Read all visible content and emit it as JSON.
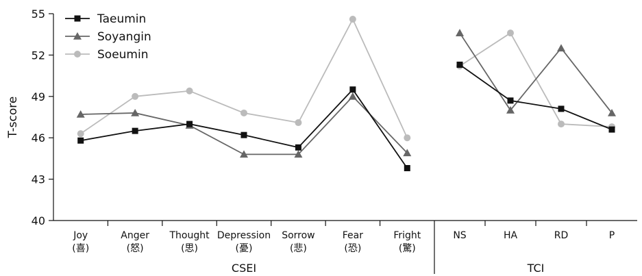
{
  "chart_data": {
    "type": "line",
    "ylabel": "T-score",
    "ylim": [
      40,
      55
    ],
    "yticks": [
      40,
      43,
      46,
      49,
      52,
      55
    ],
    "grid": false,
    "legend_position": "top-left",
    "groups": [
      {
        "name": "CSEI",
        "categories": [
          {
            "label": "Joy",
            "sub": "(喜)"
          },
          {
            "label": "Anger",
            "sub": "(怒)"
          },
          {
            "label": "Thought",
            "sub": "(思)"
          },
          {
            "label": "Depression",
            "sub": "(憂)"
          },
          {
            "label": "Sorrow",
            "sub": "(悲)"
          },
          {
            "label": "Fear",
            "sub": "(恐)"
          },
          {
            "label": "Fright",
            "sub": "(驚)"
          }
        ]
      },
      {
        "name": "TCI",
        "categories": [
          {
            "label": "NS",
            "sub": ""
          },
          {
            "label": "HA",
            "sub": ""
          },
          {
            "label": "RD",
            "sub": ""
          },
          {
            "label": "P",
            "sub": ""
          }
        ]
      }
    ],
    "series": [
      {
        "name": "Taeumin",
        "marker": "square",
        "color": "#111111",
        "values": [
          [
            45.8,
            46.5,
            47.0,
            46.2,
            45.3,
            49.5,
            43.8
          ],
          [
            51.3,
            48.7,
            48.1,
            46.6
          ]
        ]
      },
      {
        "name": "Soyangin",
        "marker": "triangle",
        "color": "#666666",
        "values": [
          [
            47.7,
            47.8,
            46.9,
            44.8,
            44.8,
            49.0,
            44.9
          ],
          [
            53.6,
            48.0,
            52.5,
            47.8
          ]
        ]
      },
      {
        "name": "Soeumin",
        "marker": "circle",
        "color": "#bbbbbb",
        "values": [
          [
            46.3,
            49.0,
            49.4,
            47.8,
            47.1,
            54.6,
            46.0
          ],
          [
            51.2,
            53.6,
            47.0,
            46.8
          ]
        ]
      }
    ]
  }
}
